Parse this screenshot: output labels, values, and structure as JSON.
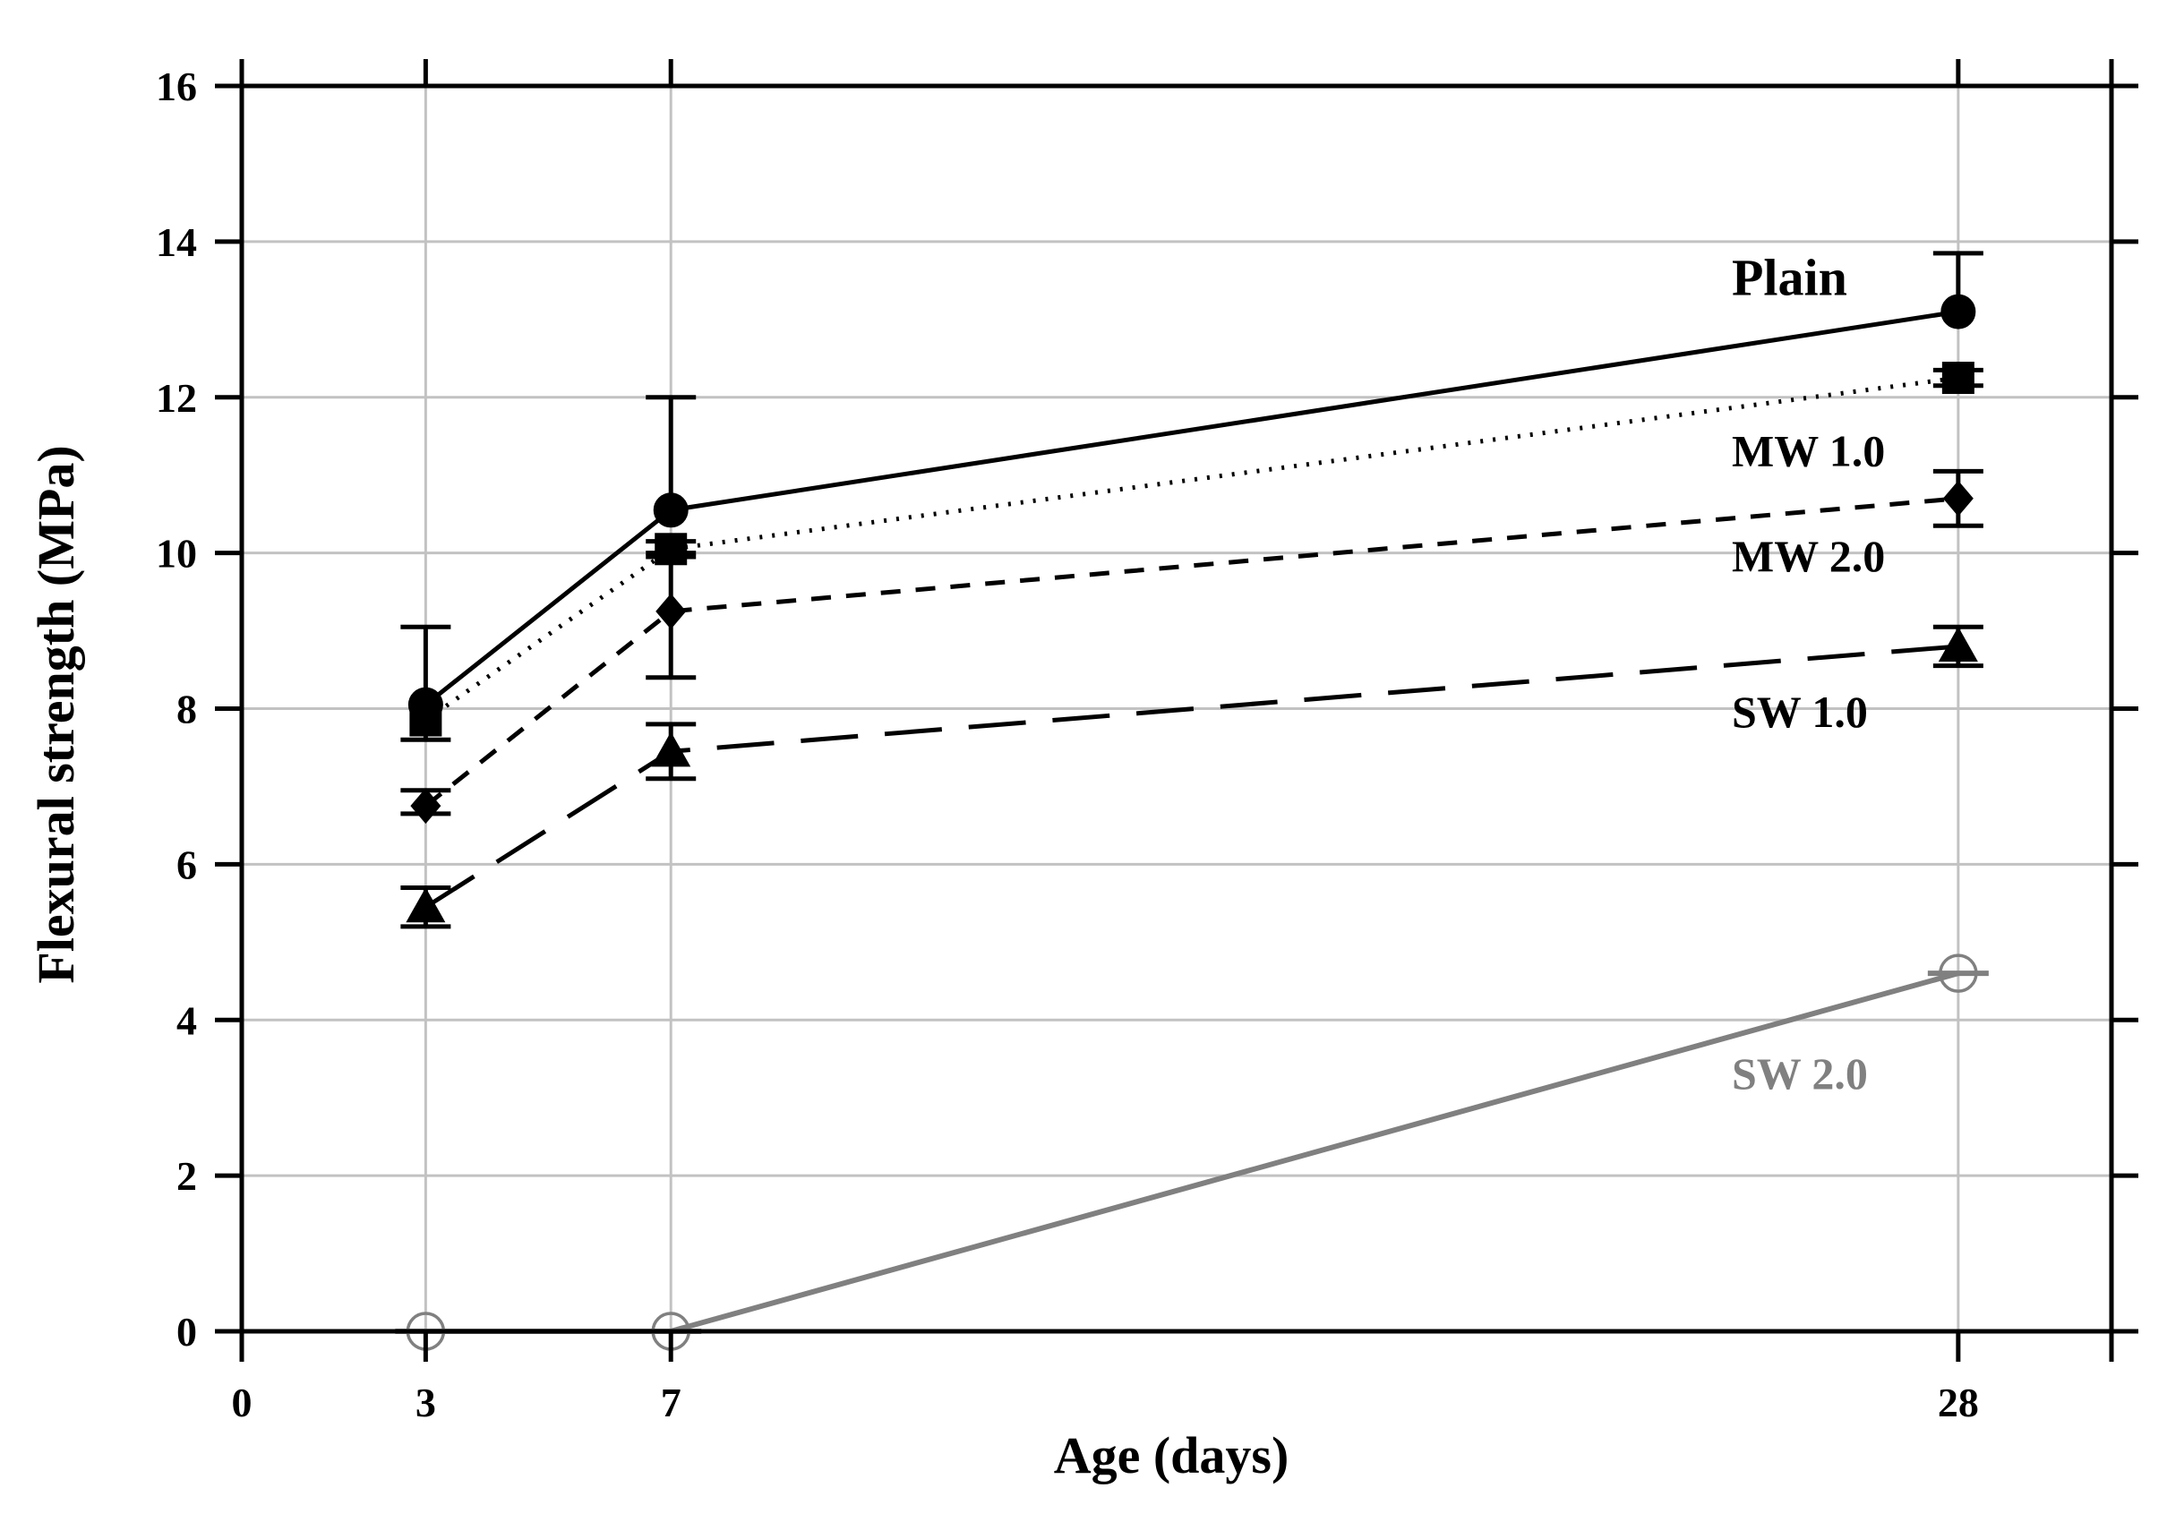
{
  "chart_data": {
    "type": "line",
    "title": "",
    "xlabel": "Age (days)",
    "ylabel": "Flexural strength (MPa)",
    "xlim": [
      0,
      30.5
    ],
    "ylim": [
      0,
      16
    ],
    "x_ticks": [
      0,
      3,
      7,
      28
    ],
    "x_tick_labels": [
      "0",
      "3",
      "7",
      "28"
    ],
    "y_ticks": [
      0,
      2,
      4,
      6,
      8,
      10,
      12,
      14,
      16
    ],
    "y_tick_labels": [
      "0",
      "2",
      "4",
      "6",
      "8",
      "10",
      "12",
      "14",
      "16"
    ],
    "grid": true,
    "x": [
      3,
      7,
      28
    ],
    "series": [
      {
        "name": "Plain",
        "label": "Plain",
        "values": [
          8.05,
          10.55,
          13.1
        ],
        "errors": [
          [
            7.6,
            9.05
          ],
          [
            null,
            12.0
          ],
          [
            null,
            13.85
          ]
        ],
        "marker": "circle",
        "filled": true,
        "line_style": "solid",
        "color": "#000000",
        "label_at_value": 13.5
      },
      {
        "name": "MW 1.0",
        "label": "MW 1.0",
        "values": [
          7.85,
          10.05,
          12.25
        ],
        "errors": [
          [
            null,
            null
          ],
          [
            9.95,
            10.15
          ],
          [
            12.15,
            12.35
          ]
        ],
        "marker": "square",
        "filled": true,
        "line_style": "dotted",
        "color": "#000000",
        "label_at_value": 11.3
      },
      {
        "name": "MW 2.0",
        "label": "MW 2.0",
        "values": [
          6.75,
          9.25,
          10.7
        ],
        "errors": [
          [
            6.65,
            6.95
          ],
          [
            8.4,
            10.0
          ],
          [
            10.35,
            11.05
          ]
        ],
        "marker": "diamond",
        "filled": true,
        "line_style": "dashed",
        "color": "#000000",
        "label_at_value": 9.95
      },
      {
        "name": "SW 1.0",
        "label": "SW 1.0",
        "values": [
          5.45,
          7.45,
          8.8
        ],
        "errors": [
          [
            5.2,
            5.7
          ],
          [
            7.1,
            7.8
          ],
          [
            8.55,
            9.05
          ]
        ],
        "marker": "triangle",
        "filled": true,
        "line_style": "long-dash",
        "color": "#000000",
        "label_at_value": 7.95
      },
      {
        "name": "SW 2.0",
        "label": "SW 2.0",
        "values": [
          0,
          0,
          4.6
        ],
        "errors": [
          [
            null,
            null
          ],
          [
            null,
            null
          ],
          [
            null,
            null
          ]
        ],
        "marker": "circle",
        "filled": false,
        "line_style": "solid",
        "color": "#808080",
        "label_at_value": 3.3
      }
    ]
  }
}
